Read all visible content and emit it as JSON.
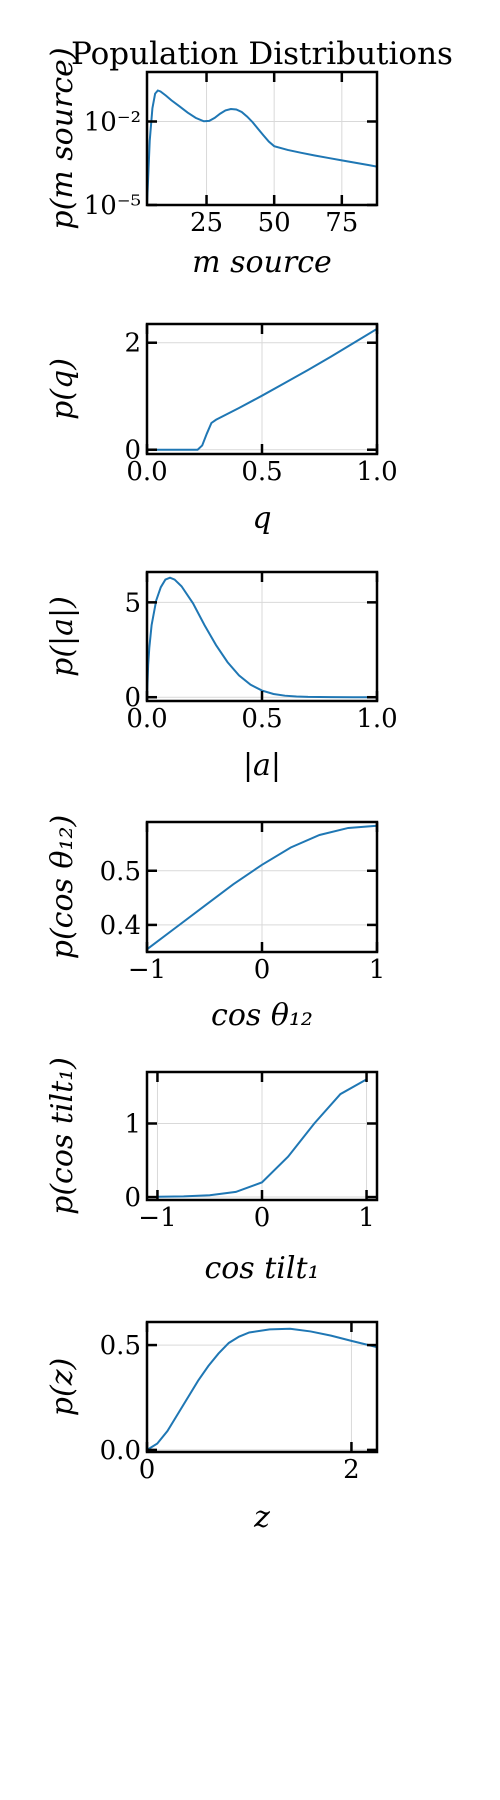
{
  "figure": {
    "title": "Population Distributions",
    "line_color": "#1f77b4",
    "grid_color": "#d9d9d9",
    "axis_color": "#000000"
  },
  "chart_data": [
    {
      "type": "line",
      "xlabel": "m source",
      "ylabel": "p(m source)",
      "yscale": "log",
      "xlim": [
        3,
        88
      ],
      "ylim": [
        1e-05,
        0.6
      ],
      "xticks": [
        25,
        50,
        75
      ],
      "xticklabels": [
        "25",
        "50",
        "75"
      ],
      "yticks": [
        1e-05,
        0.01
      ],
      "yticklabels": [
        "10⁻⁵",
        "10⁻²"
      ],
      "grid": true,
      "x": [
        3,
        4,
        5,
        6,
        7,
        8,
        10,
        12,
        15,
        18,
        21,
        24,
        26,
        28,
        30,
        32,
        34,
        36,
        38,
        40,
        42,
        44,
        46,
        48,
        50,
        55,
        60,
        65,
        70,
        75,
        80,
        85,
        88
      ],
      "y": [
        1e-05,
        0.002,
        0.03,
        0.1,
        0.13,
        0.12,
        0.085,
        0.058,
        0.035,
        0.021,
        0.0135,
        0.0102,
        0.0105,
        0.0135,
        0.019,
        0.025,
        0.028,
        0.027,
        0.022,
        0.015,
        0.0095,
        0.0055,
        0.0032,
        0.0019,
        0.0013,
        0.00095,
        0.00075,
        0.0006,
        0.00049,
        0.0004,
        0.00033,
        0.00027,
        0.00024
      ]
    },
    {
      "type": "line",
      "xlabel": "q",
      "ylabel": "p(q)",
      "xlim": [
        0,
        1
      ],
      "ylim": [
        -0.08,
        2.35
      ],
      "xticks": [
        0,
        0.5,
        1
      ],
      "xticklabels": [
        "0.0",
        "0.5",
        "1.0"
      ],
      "yticks": [
        0,
        2
      ],
      "yticklabels": [
        "0",
        "2"
      ],
      "grid": true,
      "x": [
        0,
        0.1,
        0.2,
        0.22,
        0.24,
        0.26,
        0.28,
        0.3,
        0.4,
        0.5,
        0.6,
        0.7,
        0.8,
        0.9,
        1.0
      ],
      "y": [
        0,
        0,
        0,
        0,
        0.08,
        0.3,
        0.5,
        0.56,
        0.78,
        1.01,
        1.25,
        1.49,
        1.74,
        2.0,
        2.26
      ]
    },
    {
      "type": "line",
      "xlabel": "|a|",
      "ylabel": "p(|a|)",
      "xlim": [
        0,
        1
      ],
      "ylim": [
        -0.2,
        6.6
      ],
      "xticks": [
        0,
        0.5,
        1
      ],
      "xticklabels": [
        "0.0",
        "0.5",
        "1.0"
      ],
      "yticks": [
        0,
        5
      ],
      "yticklabels": [
        "0",
        "5"
      ],
      "grid": true,
      "x": [
        0,
        0.005,
        0.01,
        0.02,
        0.04,
        0.06,
        0.08,
        0.1,
        0.12,
        0.15,
        0.2,
        0.25,
        0.3,
        0.35,
        0.4,
        0.45,
        0.5,
        0.55,
        0.6,
        0.65,
        0.7,
        0.8,
        0.9,
        1.0
      ],
      "y": [
        0,
        1.7,
        2.6,
        3.8,
        5.1,
        5.8,
        6.2,
        6.3,
        6.2,
        5.85,
        4.95,
        3.8,
        2.75,
        1.85,
        1.15,
        0.66,
        0.35,
        0.17,
        0.08,
        0.035,
        0.015,
        0.002,
        0.0,
        0.0
      ]
    },
    {
      "type": "line",
      "xlabel": "cos θ₁₂",
      "ylabel": "p(cos θ₁₂)",
      "xlim": [
        -1,
        1
      ],
      "ylim": [
        0.35,
        0.59
      ],
      "xticks": [
        -1,
        0,
        1
      ],
      "xticklabels": [
        "−1",
        "0",
        "1"
      ],
      "yticks": [
        0.4,
        0.5
      ],
      "yticklabels": [
        "0.4",
        "0.5"
      ],
      "grid": true,
      "x": [
        -1,
        -0.75,
        -0.5,
        -0.25,
        0,
        0.25,
        0.5,
        0.75,
        1
      ],
      "y": [
        0.355,
        0.395,
        0.435,
        0.475,
        0.511,
        0.543,
        0.566,
        0.579,
        0.583
      ]
    },
    {
      "type": "line",
      "xlabel": "cos tilt₁",
      "ylabel": "p(cos tilt₁)",
      "xlim": [
        -1.1,
        1.1
      ],
      "ylim": [
        -0.04,
        1.7
      ],
      "xticks": [
        -1,
        0,
        1
      ],
      "xticklabels": [
        "−1",
        "0",
        "1"
      ],
      "yticks": [
        0,
        1
      ],
      "yticklabels": [
        "0",
        "1"
      ],
      "grid": true,
      "x": [
        -1,
        -0.75,
        -0.5,
        -0.25,
        0,
        0.25,
        0.5,
        0.75,
        1
      ],
      "y": [
        0.005,
        0.01,
        0.025,
        0.07,
        0.2,
        0.55,
        1.0,
        1.4,
        1.6
      ]
    },
    {
      "type": "line",
      "xlabel": "z",
      "ylabel": "p(z)",
      "xlim": [
        0,
        2.25
      ],
      "ylim": [
        -0.01,
        0.61
      ],
      "xticks": [
        0,
        2
      ],
      "xticklabels": [
        "0",
        "2"
      ],
      "yticks": [
        0,
        0.5
      ],
      "yticklabels": [
        "0.0",
        "0.5"
      ],
      "grid": true,
      "x": [
        0,
        0.1,
        0.2,
        0.3,
        0.4,
        0.5,
        0.6,
        0.7,
        0.8,
        0.9,
        1.0,
        1.2,
        1.4,
        1.6,
        1.8,
        2.0,
        2.25
      ],
      "y": [
        0,
        0.03,
        0.09,
        0.17,
        0.25,
        0.33,
        0.4,
        0.46,
        0.51,
        0.54,
        0.56,
        0.575,
        0.578,
        0.565,
        0.545,
        0.52,
        0.49
      ]
    }
  ]
}
